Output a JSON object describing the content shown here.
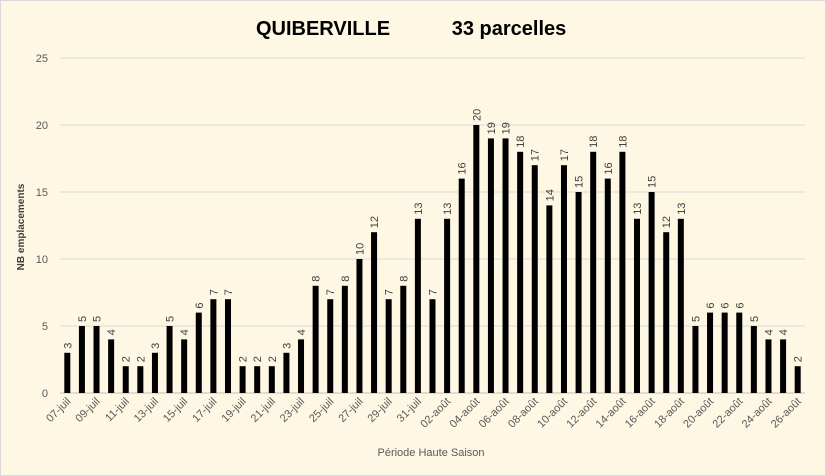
{
  "chart_data": {
    "type": "bar",
    "title": "QUIBERVILLE",
    "subtitle": "33 parcelles",
    "xlabel": "Période Haute Saison",
    "ylabel": "NB emplacements",
    "ylim": [
      0,
      25
    ],
    "yticks": [
      0,
      5,
      10,
      15,
      20,
      25
    ],
    "grid": true,
    "legend": "none",
    "bar_color": "#000000",
    "categories": [
      "07-juil",
      "08-juil",
      "09-juil",
      "10-juil",
      "11-juil",
      "12-juil",
      "13-juil",
      "14-juil",
      "15-juil",
      "16-juil",
      "17-juil",
      "18-juil",
      "19-juil",
      "20-juil",
      "21-juil",
      "22-juil",
      "23-juil",
      "24-juil",
      "25-juil",
      "26-juil",
      "27-juil",
      "28-juil",
      "29-juil",
      "30-juil",
      "31-juil",
      "01-août",
      "02-août",
      "03-août",
      "04-août",
      "05-août",
      "06-août",
      "07-août",
      "08-août",
      "09-août",
      "10-août",
      "11-août",
      "12-août",
      "13-août",
      "14-août",
      "15-août",
      "16-août",
      "17-août",
      "18-août",
      "19-août",
      "20-août",
      "21-août",
      "22-août",
      "23-août",
      "24-août",
      "25-août",
      "26-août"
    ],
    "tick_labels": [
      "07-juil",
      "09-juil",
      "11-juil",
      "13-juil",
      "15-juil",
      "17-juil",
      "19-juil",
      "21-juil",
      "23-juil",
      "25-juil",
      "27-juil",
      "29-juil",
      "31-juil",
      "02-août",
      "04-août",
      "06-août",
      "08-août",
      "10-août",
      "12-août",
      "14-août",
      "16-août",
      "18-août",
      "20-août",
      "22-août",
      "24-août",
      "26-août"
    ],
    "values": [
      3,
      5,
      5,
      4,
      2,
      2,
      3,
      5,
      4,
      6,
      7,
      7,
      2,
      2,
      2,
      3,
      4,
      8,
      7,
      8,
      10,
      12,
      7,
      8,
      13,
      7,
      13,
      16,
      20,
      19,
      19,
      18,
      17,
      14,
      17,
      15,
      18,
      16,
      18,
      13,
      15,
      12,
      13,
      5,
      6,
      6,
      6,
      5,
      4,
      4,
      2
    ]
  }
}
